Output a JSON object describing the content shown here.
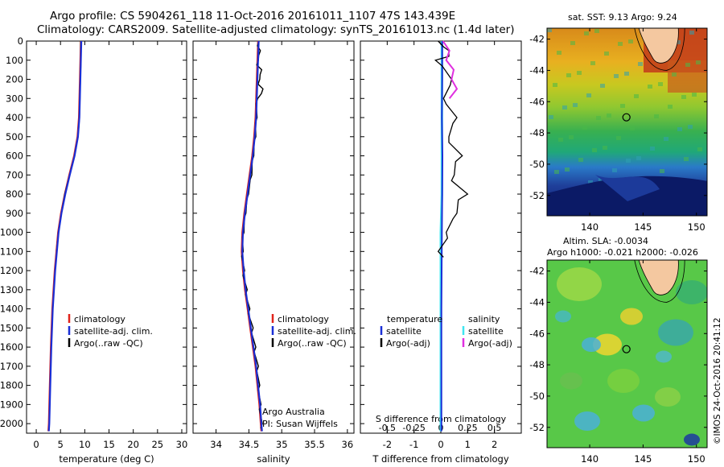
{
  "header": {
    "line1": "Argo profile: CS 5904261_118 11-Oct-2016 20161011_1107 47S 143.439E",
    "line2": "Climatology: CARS2009. Satellite-adjusted climatology: synTS_20161013.nc (1.4d later)"
  },
  "colors": {
    "climatology": "#e0231b",
    "satellite": "#1a2fd6",
    "argo": "#000000",
    "cyan": "#3ee6f0",
    "magenta": "#e030e0"
  },
  "chart_data": [
    {
      "type": "line",
      "name": "temperature-profile",
      "xlabel": "temperature (deg C)",
      "ylabel": "",
      "xlim": [
        -2,
        31
      ],
      "ylim": [
        2050,
        0
      ],
      "xticks": [
        0,
        5,
        10,
        15,
        20,
        25,
        30
      ],
      "yticks": [
        0,
        100,
        200,
        300,
        400,
        500,
        600,
        700,
        800,
        900,
        1000,
        1100,
        1200,
        1300,
        1400,
        1500,
        1600,
        1700,
        1800,
        1900,
        2000
      ],
      "legend": [
        "climatology",
        "satellite-adj. clim.",
        "Argo(..raw -QC)"
      ],
      "series": [
        {
          "name": "climatology",
          "depth": [
            0,
            100,
            200,
            300,
            400,
            500,
            600,
            700,
            800,
            900,
            1000,
            1200,
            1400,
            1600,
            1800,
            2000,
            2040
          ],
          "values": [
            9.2,
            9.1,
            9.0,
            8.9,
            8.8,
            8.5,
            7.8,
            6.8,
            5.9,
            5.1,
            4.5,
            3.8,
            3.3,
            3.0,
            2.8,
            2.6,
            2.5
          ]
        },
        {
          "name": "satellite-adj. clim.",
          "depth": [
            0,
            100,
            200,
            300,
            400,
            500,
            600,
            700,
            800,
            900,
            1000,
            1200,
            1400,
            1600,
            1800,
            2000,
            2040
          ],
          "values": [
            9.3,
            9.2,
            9.1,
            9.0,
            8.9,
            8.6,
            7.9,
            6.9,
            6.0,
            5.2,
            4.6,
            3.9,
            3.4,
            3.1,
            2.9,
            2.7,
            2.6
          ]
        },
        {
          "name": "Argo",
          "depth": [
            0,
            100,
            200,
            300,
            400,
            500,
            600,
            700,
            800,
            900,
            1000,
            1100
          ],
          "values": [
            9.2,
            9.2,
            9.1,
            9.0,
            8.9,
            8.6,
            7.9,
            6.9,
            5.9,
            5.2,
            4.6,
            4.2
          ]
        }
      ]
    },
    {
      "type": "line",
      "name": "salinity-profile",
      "xlabel": "salinity",
      "xlim": [
        33.65,
        36.1
      ],
      "ylim": [
        2050,
        0
      ],
      "xticks": [
        34,
        34.5,
        35,
        35.5,
        36
      ],
      "legend": [
        "climatology",
        "satellite-adj. clim.",
        "Argo(..raw -QC)"
      ],
      "annotation": [
        "Argo Australia",
        "PI: Susan Wijffels"
      ],
      "series": [
        {
          "name": "climatology",
          "depth": [
            0,
            100,
            200,
            300,
            400,
            500,
            600,
            700,
            800,
            900,
            1000,
            1100,
            1200,
            1300,
            1400,
            1500,
            1600,
            1700,
            1800,
            1900,
            2000,
            2040
          ],
          "values": [
            34.64,
            34.63,
            34.62,
            34.61,
            34.6,
            34.58,
            34.55,
            34.51,
            34.47,
            34.43,
            34.4,
            34.39,
            34.41,
            34.44,
            34.48,
            34.52,
            34.56,
            34.6,
            34.63,
            34.66,
            34.68,
            34.69
          ]
        },
        {
          "name": "satellite-adj. clim.",
          "depth": [
            0,
            100,
            200,
            300,
            400,
            500,
            600,
            700,
            800,
            900,
            1000,
            1100,
            1200,
            1300,
            1400,
            1500,
            1600,
            1700,
            1800,
            1900,
            2000,
            2040
          ],
          "values": [
            34.65,
            34.64,
            34.63,
            34.62,
            34.61,
            34.59,
            34.56,
            34.52,
            34.48,
            34.44,
            34.41,
            34.4,
            34.42,
            34.45,
            34.49,
            34.53,
            34.57,
            34.61,
            34.64,
            34.67,
            34.69,
            34.7
          ]
        },
        {
          "name": "Argo",
          "depth": [
            0,
            50,
            100,
            150,
            200,
            250,
            300,
            400,
            500,
            600,
            700,
            800,
            900,
            1000,
            1100,
            1200,
            1300,
            1400,
            1500,
            1600,
            1700,
            1800,
            1900,
            2000
          ],
          "values": [
            34.64,
            34.66,
            34.63,
            34.68,
            34.65,
            34.7,
            34.62,
            34.61,
            34.59,
            34.56,
            34.53,
            34.48,
            34.44,
            34.41,
            34.4,
            34.42,
            34.46,
            34.5,
            34.55,
            34.59,
            34.63,
            34.65,
            34.67,
            34.69
          ]
        }
      ]
    },
    {
      "type": "line",
      "name": "difference-profile",
      "xlabel": "T difference from climatology",
      "xlabel_top": "S difference from climatology",
      "xlim": [
        -3,
        3
      ],
      "ylim": [
        2050,
        0
      ],
      "xticks": [
        -2,
        -1,
        0,
        1,
        2
      ],
      "xticks_top": [
        -0.5,
        -0.25,
        0,
        0.25,
        0.5
      ],
      "xticks_top_labels": [
        "-0.5",
        "-0.25",
        "0",
        "0.25",
        "0.5"
      ],
      "legend_temperature": {
        "title": "temperature",
        "items": [
          "satellite",
          "Argo(-adj)"
        ]
      },
      "legend_salinity": {
        "title": "salinity",
        "items": [
          "satellite",
          "Argo(-adj)"
        ]
      },
      "series": [
        {
          "name": "T satellite",
          "depth": [
            0,
            200,
            400,
            600,
            800,
            1000,
            1200,
            1400,
            1600,
            1800,
            2000,
            2040
          ],
          "values": [
            0.05,
            0.05,
            0.04,
            0.06,
            0.05,
            0.04,
            0.03,
            0.02,
            0.02,
            0.02,
            0.02,
            0.02
          ]
        },
        {
          "name": "T Argo(-adj)",
          "depth": [
            0,
            50,
            100,
            200,
            300,
            400,
            500,
            600,
            700,
            800,
            900,
            1000,
            1100
          ],
          "values": [
            -0.1,
            0.3,
            -0.2,
            0.4,
            0.1,
            0.6,
            0.3,
            0.8,
            0.5,
            1.0,
            0.6,
            0.2,
            -0.1
          ]
        },
        {
          "name": "S satellite",
          "depth": [
            0,
            200,
            400,
            600,
            800,
            1000,
            1200,
            1400,
            1600,
            1800,
            2000,
            2040
          ],
          "values": [
            0.01,
            0.01,
            0.01,
            0.01,
            0.01,
            0.0,
            0.0,
            0.0,
            0.0,
            0.0,
            0.0,
            0.0
          ]
        },
        {
          "name": "S Argo(-adj)",
          "depth": [
            0,
            50,
            100,
            150,
            200,
            250,
            300
          ],
          "values": [
            0.02,
            0.08,
            0.05,
            0.12,
            0.1,
            0.15,
            0.08
          ]
        }
      ]
    },
    {
      "type": "heatmap",
      "name": "sst-map",
      "title": "sat. SST: 9.13 Argo: 9.24",
      "xticks": [
        140,
        145,
        150
      ],
      "yticks": [
        -42,
        -44,
        -46,
        -48,
        -50,
        -52
      ],
      "xlim": [
        136,
        151
      ],
      "ylim": [
        -53.3,
        -41.3
      ],
      "marker": {
        "lon": 143.439,
        "lat": -47
      }
    },
    {
      "type": "heatmap",
      "name": "sla-map",
      "title_line1": "Altim. SLA: -0.0034",
      "title_line2": "Argo h1000: -0.021 h2000: -0.026",
      "xticks": [
        140,
        145,
        150
      ],
      "yticks": [
        -42,
        -44,
        -46,
        -48,
        -50,
        -52
      ],
      "xlim": [
        136,
        151
      ],
      "ylim": [
        -53.3,
        -41.3
      ],
      "marker": {
        "lon": 143.439,
        "lat": -47
      }
    }
  ],
  "footer": {
    "credit": "©IMOS 24-Oct-2016 20:41:12"
  }
}
